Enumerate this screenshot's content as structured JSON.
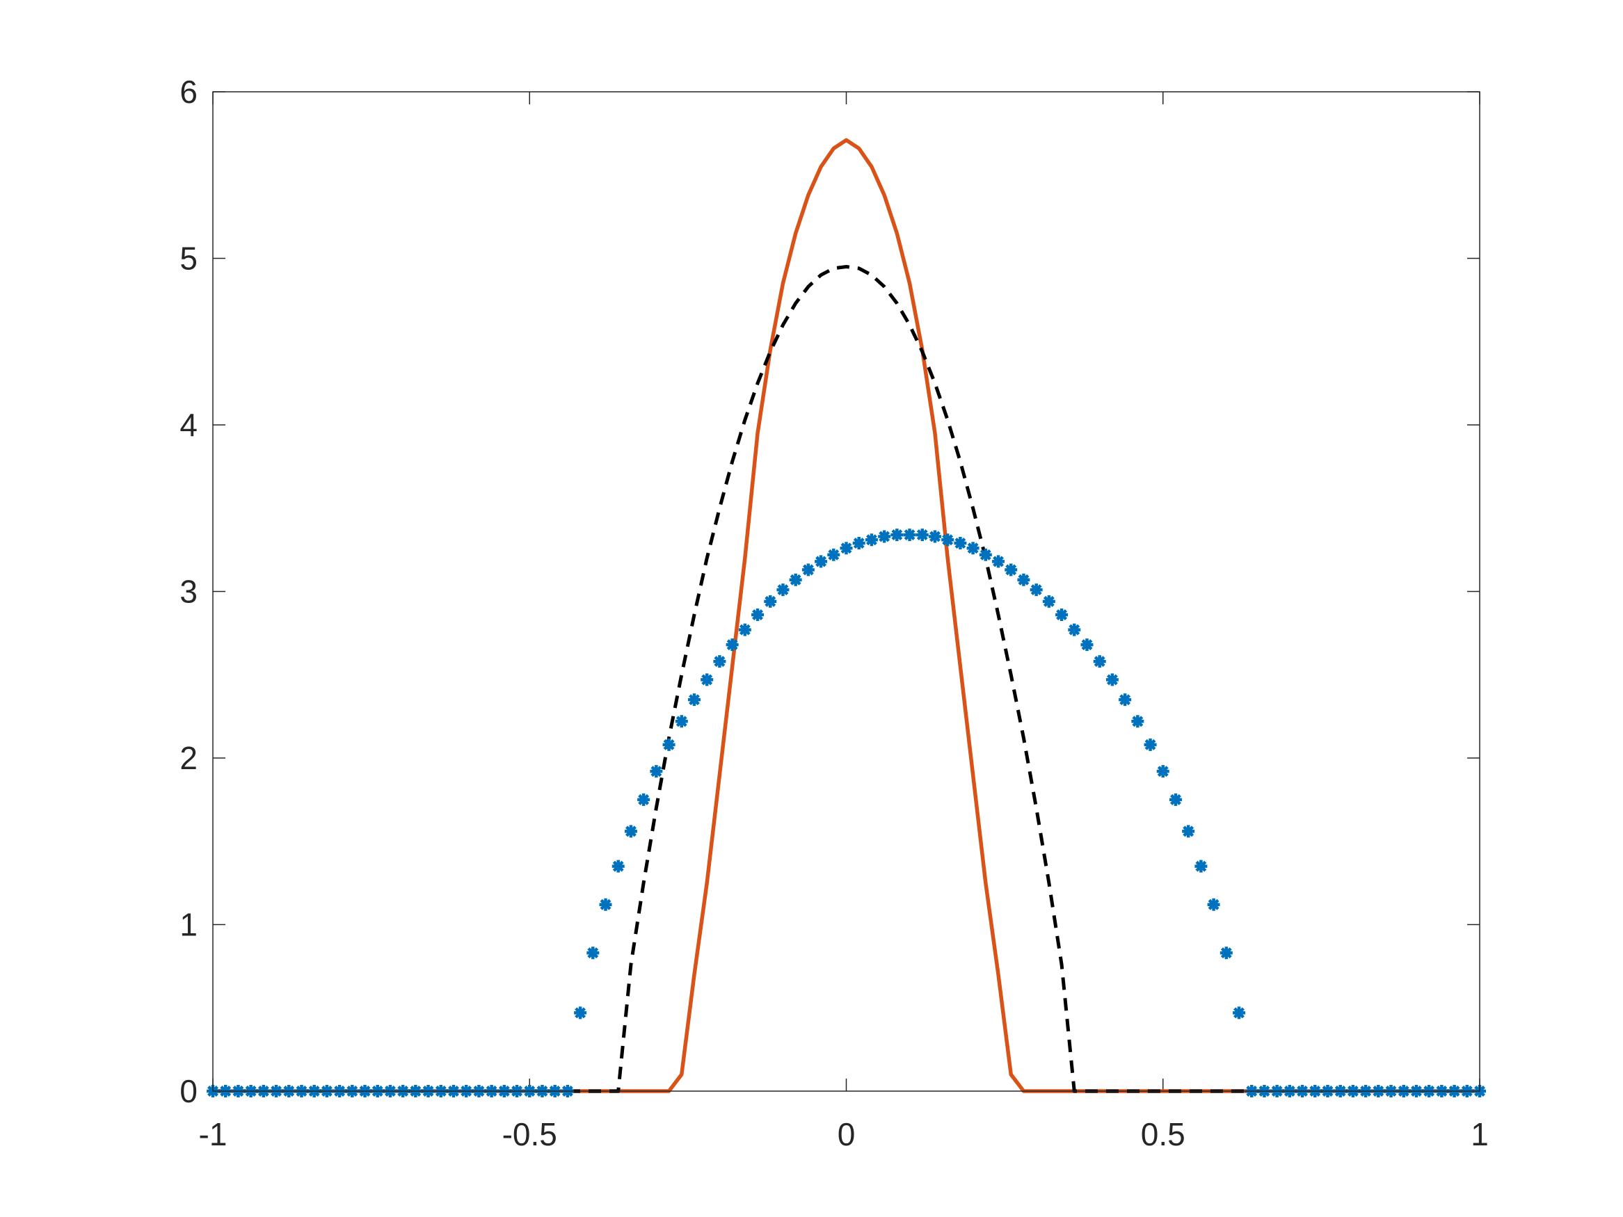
{
  "chart_data": {
    "type": "line",
    "x": [
      -1,
      -0.98,
      -0.96,
      -0.94,
      -0.92,
      -0.9,
      -0.88,
      -0.86,
      -0.84,
      -0.82,
      -0.8,
      -0.78,
      -0.76,
      -0.74,
      -0.72,
      -0.7,
      -0.68,
      -0.66,
      -0.64,
      -0.62,
      -0.6,
      -0.58,
      -0.56,
      -0.54,
      -0.52,
      -0.5,
      -0.48,
      -0.46,
      -0.44,
      -0.42,
      -0.4,
      -0.38,
      -0.36,
      -0.34,
      -0.32,
      -0.3,
      -0.28,
      -0.26,
      -0.24,
      -0.22,
      -0.2,
      -0.18,
      -0.16,
      -0.14,
      -0.12,
      -0.1,
      -0.08,
      -0.06,
      -0.04,
      -0.02,
      0,
      0.02,
      0.04,
      0.06,
      0.08,
      0.1,
      0.12,
      0.14,
      0.16,
      0.18,
      0.2,
      0.22,
      0.24,
      0.26,
      0.28,
      0.3,
      0.32,
      0.34,
      0.36,
      0.38,
      0.4,
      0.42,
      0.44,
      0.46,
      0.48,
      0.5,
      0.52,
      0.54,
      0.56,
      0.58,
      0.6,
      0.62,
      0.64,
      0.66,
      0.68,
      0.7,
      0.72,
      0.74,
      0.76,
      0.78,
      0.8,
      0.82,
      0.84,
      0.86,
      0.88,
      0.9,
      0.92,
      0.94,
      0.96,
      0.98,
      1
    ],
    "series": [
      {
        "color": "#D95319",
        "style": "solid",
        "values": [
          0,
          0,
          0,
          0,
          0,
          0,
          0,
          0,
          0,
          0,
          0,
          0,
          0,
          0,
          0,
          0,
          0,
          0,
          0,
          0,
          0,
          0,
          0,
          0,
          0,
          0,
          0,
          0,
          0,
          0,
          0,
          0,
          0,
          0,
          0,
          0,
          0,
          0.1,
          0.7,
          1.25,
          1.9,
          2.55,
          3.2,
          3.95,
          4.45,
          4.85,
          5.15,
          5.38,
          5.55,
          5.66,
          5.71,
          5.66,
          5.55,
          5.38,
          5.15,
          4.85,
          4.45,
          3.95,
          3.2,
          2.55,
          1.9,
          1.25,
          0.7,
          0.1,
          0,
          0,
          0,
          0,
          0,
          0,
          0,
          0,
          0,
          0,
          0,
          0,
          0,
          0,
          0,
          0,
          0,
          0,
          0,
          0,
          0,
          0,
          0,
          0,
          0,
          0,
          0,
          0,
          0,
          0,
          0,
          0,
          0,
          0,
          0,
          0,
          0
        ]
      },
      {
        "color": "#000000",
        "style": "dashed",
        "values": [
          0,
          0,
          0,
          0,
          0,
          0,
          0,
          0,
          0,
          0,
          0,
          0,
          0,
          0,
          0,
          0,
          0,
          0,
          0,
          0,
          0,
          0,
          0,
          0,
          0,
          0,
          0,
          0,
          0,
          0,
          0,
          0,
          0,
          0.76,
          1.25,
          1.7,
          2.12,
          2.5,
          2.86,
          3.2,
          3.5,
          3.78,
          4.03,
          4.25,
          4.44,
          4.6,
          4.73,
          4.83,
          4.9,
          4.94,
          4.95,
          4.94,
          4.9,
          4.83,
          4.73,
          4.6,
          4.44,
          4.25,
          4.03,
          3.78,
          3.5,
          3.2,
          2.86,
          2.5,
          2.12,
          1.7,
          1.25,
          0.76,
          0,
          0,
          0,
          0,
          0,
          0,
          0,
          0,
          0,
          0,
          0,
          0,
          0,
          0,
          0,
          0,
          0,
          0,
          0,
          0,
          0,
          0,
          0,
          0,
          0,
          0,
          0,
          0,
          0,
          0,
          0,
          0,
          0
        ]
      },
      {
        "color": "#0072BD",
        "style": "markers",
        "values": [
          0,
          0,
          0,
          0,
          0,
          0,
          0,
          0,
          0,
          0,
          0,
          0,
          0,
          0,
          0,
          0,
          0,
          0,
          0,
          0,
          0,
          0,
          0,
          0,
          0,
          0,
          0,
          0,
          0,
          0.47,
          0.83,
          1.12,
          1.35,
          1.56,
          1.75,
          1.92,
          2.08,
          2.22,
          2.35,
          2.47,
          2.58,
          2.68,
          2.77,
          2.86,
          2.94,
          3.01,
          3.07,
          3.13,
          3.18,
          3.22,
          3.26,
          3.29,
          3.31,
          3.33,
          3.34,
          3.34,
          3.34,
          3.33,
          3.31,
          3.29,
          3.26,
          3.22,
          3.18,
          3.13,
          3.07,
          3.01,
          2.94,
          2.86,
          2.77,
          2.68,
          2.58,
          2.47,
          2.35,
          2.22,
          2.08,
          1.92,
          1.75,
          1.56,
          1.35,
          1.12,
          0.83,
          0.47,
          0,
          0,
          0,
          0,
          0,
          0,
          0,
          0,
          0,
          0,
          0,
          0,
          0,
          0,
          0,
          0,
          0,
          0,
          0
        ]
      }
    ],
    "xlim": [
      -1,
      1
    ],
    "xticks": [
      -1,
      -0.5,
      0,
      0.5,
      1
    ],
    "ylim": [
      0,
      6
    ],
    "yticks": [
      0,
      1,
      2,
      3,
      4,
      5,
      6
    ],
    "grid": false,
    "box": true
  }
}
